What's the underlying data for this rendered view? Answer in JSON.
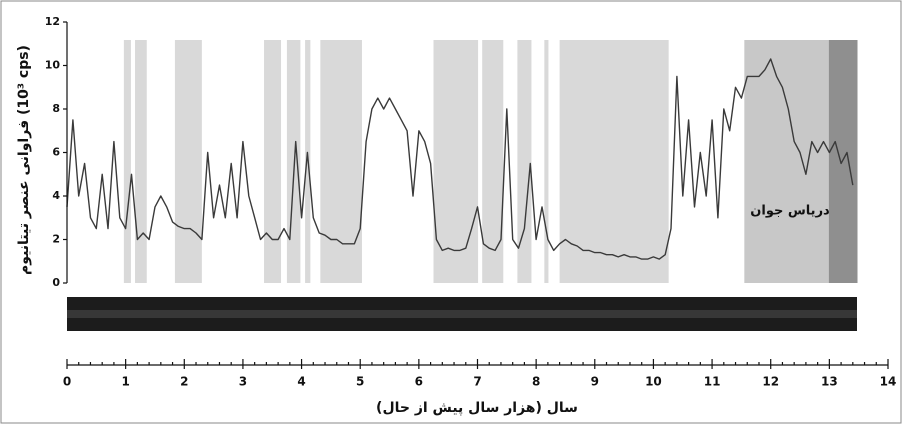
{
  "chart_data": {
    "type": "line",
    "y_label": "فراوانی عنصر تیتانیوم (10³ cps)",
    "x_label": "سال (هزار سال پیش از حال)",
    "annotation": "درياس جوان",
    "xlim": [
      0,
      14
    ],
    "xticks": [
      0,
      1,
      2,
      3,
      4,
      5,
      6,
      7,
      8,
      9,
      10,
      11,
      12,
      13,
      14
    ],
    "ylim": [
      0,
      12
    ],
    "yticks": [
      0,
      2,
      4,
      6,
      8,
      10,
      12
    ],
    "line_color": "#3a3a3a",
    "shaded": [
      {
        "range": [
          0.97,
          1.09
        ],
        "color": "#d9d9d9"
      },
      {
        "range": [
          1.16,
          1.36
        ],
        "color": "#d9d9d9"
      },
      {
        "range": [
          1.84,
          2.3
        ],
        "color": "#d9d9d9"
      },
      {
        "range": [
          3.36,
          3.65
        ],
        "color": "#d9d9d9"
      },
      {
        "range": [
          3.75,
          3.98
        ],
        "color": "#d9d9d9"
      },
      {
        "range": [
          4.06,
          4.15
        ],
        "color": "#d9d9d9"
      },
      {
        "range": [
          4.32,
          5.03
        ],
        "color": "#d9d9d9"
      },
      {
        "range": [
          6.25,
          7.01
        ],
        "color": "#d9d9d9"
      },
      {
        "range": [
          7.08,
          7.44
        ],
        "color": "#d9d9d9"
      },
      {
        "range": [
          7.68,
          7.92
        ],
        "color": "#d9d9d9"
      },
      {
        "range": [
          8.14,
          8.21
        ],
        "color": "#d9d9d9"
      },
      {
        "range": [
          8.4,
          10.26
        ],
        "color": "#d9d9d9"
      },
      {
        "range": [
          11.55,
          12.99
        ],
        "color": "#c8c8c8"
      },
      {
        "range": [
          12.99,
          13.48
        ],
        "color": "#8f8f8f"
      }
    ],
    "x": [
      0.0,
      0.1,
      0.2,
      0.3,
      0.4,
      0.5,
      0.6,
      0.7,
      0.8,
      0.9,
      1.0,
      1.1,
      1.2,
      1.3,
      1.4,
      1.5,
      1.6,
      1.7,
      1.8,
      1.9,
      2.0,
      2.1,
      2.2,
      2.3,
      2.4,
      2.5,
      2.6,
      2.7,
      2.8,
      2.9,
      3.0,
      3.1,
      3.2,
      3.3,
      3.4,
      3.5,
      3.6,
      3.7,
      3.8,
      3.9,
      4.0,
      4.1,
      4.2,
      4.3,
      4.4,
      4.5,
      4.6,
      4.7,
      4.8,
      4.9,
      5.0,
      5.1,
      5.2,
      5.3,
      5.4,
      5.5,
      5.6,
      5.7,
      5.8,
      5.9,
      6.0,
      6.1,
      6.2,
      6.3,
      6.4,
      6.5,
      6.6,
      6.7,
      6.8,
      6.9,
      7.0,
      7.1,
      7.2,
      7.3,
      7.4,
      7.5,
      7.6,
      7.7,
      7.8,
      7.9,
      8.0,
      8.1,
      8.2,
      8.3,
      8.4,
      8.5,
      8.6,
      8.7,
      8.8,
      8.9,
      9.0,
      9.1,
      9.2,
      9.3,
      9.4,
      9.5,
      9.6,
      9.7,
      9.8,
      9.9,
      10.0,
      10.1,
      10.2,
      10.3,
      10.4,
      10.5,
      10.6,
      10.7,
      10.8,
      10.9,
      11.0,
      11.1,
      11.2,
      11.3,
      11.4,
      11.5,
      11.6,
      11.7,
      11.8,
      11.9,
      12.0,
      12.1,
      12.2,
      12.3,
      12.4,
      12.5,
      12.6,
      12.7,
      12.8,
      12.9,
      13.0,
      13.1,
      13.2,
      13.3,
      13.4
    ],
    "values": [
      3.5,
      7.5,
      4.0,
      5.5,
      3.0,
      2.5,
      5.0,
      2.5,
      6.5,
      3.0,
      2.5,
      5.0,
      2.0,
      2.3,
      2.0,
      3.5,
      4.0,
      3.5,
      2.8,
      2.6,
      2.5,
      2.5,
      2.3,
      2.0,
      6.0,
      3.0,
      4.5,
      3.0,
      5.5,
      3.0,
      6.5,
      4.0,
      3.0,
      2.0,
      2.3,
      2.0,
      2.0,
      2.5,
      2.0,
      6.5,
      3.0,
      6.0,
      3.0,
      2.3,
      2.2,
      2.0,
      2.0,
      1.8,
      1.8,
      1.8,
      2.5,
      6.5,
      8.0,
      8.5,
      8.0,
      8.5,
      8.0,
      7.5,
      7.0,
      4.0,
      7.0,
      6.5,
      5.5,
      2.0,
      1.5,
      1.6,
      1.5,
      1.5,
      1.6,
      2.5,
      3.5,
      1.8,
      1.6,
      1.5,
      2.0,
      8.0,
      2.0,
      1.6,
      2.5,
      5.5,
      2.0,
      3.5,
      2.0,
      1.5,
      1.8,
      2.0,
      1.8,
      1.7,
      1.5,
      1.5,
      1.4,
      1.4,
      1.3,
      1.3,
      1.2,
      1.3,
      1.2,
      1.2,
      1.1,
      1.1,
      1.2,
      1.1,
      1.3,
      2.5,
      9.5,
      4.0,
      7.5,
      3.5,
      6.0,
      4.0,
      7.5,
      3.0,
      8.0,
      7.0,
      9.0,
      8.5,
      9.5,
      9.5,
      9.5,
      9.8,
      10.3,
      9.5,
      9.0,
      8.0,
      6.5,
      6.0,
      5.0,
      6.5,
      6.0,
      6.5,
      6.0,
      6.5,
      5.5,
      6.0,
      4.5
    ]
  }
}
